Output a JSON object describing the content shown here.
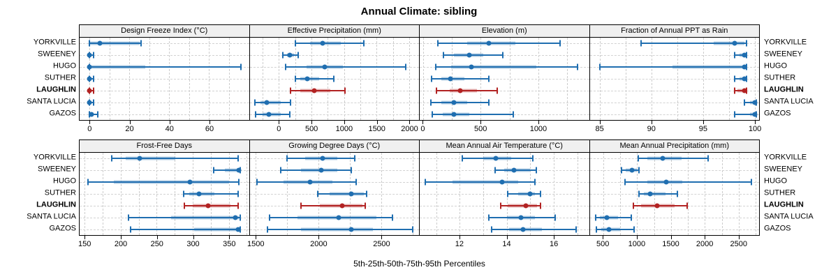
{
  "chart_data": {
    "type": "percentile-range-trellis",
    "title": "Annual Climate: sibling",
    "footer": "5th-25th-50th-75th-95th Percentiles",
    "percentile_labels": [
      "5th",
      "25th",
      "50th",
      "75th",
      "95th"
    ],
    "sites": [
      "YORKVILLE",
      "SWEENEY",
      "HUGO",
      "SUTHER",
      "LAUGHLIN",
      "SANTA LUCIA",
      "GAZOS"
    ],
    "highlight_site": "LAUGHLIN",
    "colors": {
      "normal": "#1f6eb0",
      "highlight": "#b22222",
      "band_opacity": 0.35,
      "grid": "#cccccc",
      "header_bg": "#f0f0f0",
      "border": "#000000"
    },
    "legend_position": "none",
    "grid": "dashed",
    "panels": [
      {
        "title": "Design Freeze Index (°C)",
        "xlim": [
          -5,
          80
        ],
        "ticks": [
          0,
          20,
          40,
          60
        ],
        "grid_step": 10,
        "values": {
          "YORKVILLE": [
            0,
            0,
            5,
            25,
            26
          ],
          "SWEENEY": [
            0,
            0,
            0,
            1,
            2
          ],
          "HUGO": [
            0,
            0,
            0,
            28,
            76
          ],
          "SUTHER": [
            0,
            0,
            0,
            1,
            2
          ],
          "LAUGHLIN": [
            0,
            0,
            0,
            1,
            2
          ],
          "SANTA LUCIA": [
            0,
            0,
            0,
            1,
            2
          ],
          "GAZOS": [
            0,
            0,
            1,
            2,
            4
          ]
        }
      },
      {
        "title": "Effective Precipitation (mm)",
        "xlim": [
          -450,
          2150
        ],
        "ticks": [
          0,
          500,
          1000,
          1500,
          2000
        ],
        "grid_step": 250,
        "values": {
          "YORKVILLE": [
            250,
            480,
            670,
            950,
            1300
          ],
          "SWEENEY": [
            60,
            120,
            170,
            230,
            290
          ],
          "HUGO": [
            100,
            420,
            700,
            980,
            1950
          ],
          "SUTHER": [
            250,
            330,
            430,
            620,
            840
          ],
          "LAUGHLIN": [
            180,
            330,
            545,
            790,
            1010
          ],
          "SANTA LUCIA": [
            -370,
            -280,
            -185,
            30,
            180
          ],
          "GAZOS": [
            -360,
            -250,
            -160,
            30,
            170
          ]
        }
      },
      {
        "title": "Elevation (m)",
        "xlim": [
          -30,
          1440
        ],
        "ticks": [
          0,
          500,
          1000
        ],
        "grid_step": 250,
        "values": {
          "YORKVILLE": [
            130,
            380,
            570,
            800,
            1190
          ],
          "SWEENEY": [
            175,
            270,
            400,
            520,
            690
          ],
          "HUGO": [
            110,
            240,
            420,
            980,
            1340
          ],
          "SUTHER": [
            75,
            160,
            235,
            360,
            570
          ],
          "LAUGHLIN": [
            115,
            230,
            320,
            470,
            640
          ],
          "SANTA LUCIA": [
            70,
            160,
            270,
            380,
            570
          ],
          "GAZOS": [
            80,
            170,
            270,
            400,
            780
          ]
        }
      },
      {
        "title": "Fraction of Annual PPT as Rain",
        "xlim": [
          84,
          100.4
        ],
        "ticks": [
          85,
          90,
          95,
          100
        ],
        "grid_step": 2.5,
        "values": {
          "YORKVILLE": [
            89,
            96,
            98,
            99,
            99.2
          ],
          "SWEENEY": [
            98,
            98.5,
            99,
            99,
            99.2
          ],
          "HUGO": [
            85,
            92,
            99,
            99,
            99.2
          ],
          "SUTHER": [
            98,
            98.5,
            99,
            99,
            99.2
          ],
          "LAUGHLIN": [
            98,
            98.3,
            99,
            99,
            99.2
          ],
          "SANTA LUCIA": [
            99,
            99.5,
            100,
            100,
            100.1
          ],
          "GAZOS": [
            98,
            99.5,
            100,
            100,
            100.1
          ]
        }
      },
      {
        "title": "Frost-Free Days",
        "xlim": [
          143,
          378
        ],
        "ticks": [
          150,
          200,
          250,
          300,
          350
        ],
        "grid_step": 25,
        "values": {
          "YORKVILLE": [
            188,
            207,
            226,
            276,
            363
          ],
          "SWEENEY": [
            329,
            345,
            364,
            365,
            366
          ],
          "HUGO": [
            155,
            190,
            296,
            350,
            364
          ],
          "SUTHER": [
            287,
            295,
            309,
            330,
            363
          ],
          "LAUGHLIN": [
            288,
            300,
            321,
            352,
            363
          ],
          "SANTA LUCIA": [
            211,
            270,
            359,
            364,
            366
          ],
          "GAZOS": [
            214,
            302,
            363,
            365,
            366
          ]
        }
      },
      {
        "title": "Growing Degree Days (°C)",
        "xlim": [
          1450,
          2800
        ],
        "ticks": [
          1500,
          2000,
          2500
        ],
        "grid_step": 250,
        "values": {
          "YORKVILLE": [
            1750,
            1890,
            2030,
            2150,
            2290
          ],
          "SWEENEY": [
            1700,
            1860,
            2020,
            2150,
            2260
          ],
          "HUGO": [
            1510,
            1720,
            1930,
            2110,
            2300
          ],
          "SUTHER": [
            1990,
            2090,
            2260,
            2360,
            2380
          ],
          "LAUGHLIN": [
            1860,
            2010,
            2190,
            2350,
            2370
          ],
          "SANTA LUCIA": [
            1610,
            1830,
            2160,
            2460,
            2590
          ],
          "GAZOS": [
            1590,
            1860,
            2260,
            2430,
            2750
          ]
        }
      },
      {
        "title": "Mean Annual Air Temperature (°C)",
        "xlim": [
          10.3,
          17.5
        ],
        "ticks": [
          12,
          14,
          16
        ],
        "grid_step": 1,
        "values": {
          "YORKVILLE": [
            12.1,
            13.0,
            13.55,
            14.2,
            15.1
          ],
          "SWEENEY": [
            13.5,
            13.9,
            14.3,
            15.0,
            15.25
          ],
          "HUGO": [
            10.55,
            11.7,
            13.8,
            14.5,
            15.2
          ],
          "SUTHER": [
            14.05,
            14.5,
            15.0,
            15.2,
            15.45
          ],
          "LAUGHLIN": [
            13.75,
            14.05,
            14.8,
            15.3,
            15.45
          ],
          "SANTA LUCIA": [
            13.25,
            14.0,
            14.6,
            15.2,
            16.05
          ],
          "GAZOS": [
            13.35,
            14.1,
            14.7,
            15.5,
            16.95
          ]
        }
      },
      {
        "title": "Mean Annual Precipitation (mm)",
        "xlim": [
          300,
          2800
        ],
        "ticks": [
          500,
          1000,
          1500,
          2000,
          2500
        ],
        "grid_step": 250,
        "values": {
          "YORKVILLE": [
            1020,
            1150,
            1380,
            1660,
            2050
          ],
          "SWEENEY": [
            770,
            830,
            920,
            1000,
            1030
          ],
          "HUGO": [
            820,
            1150,
            1430,
            1670,
            2690
          ],
          "SUTHER": [
            1030,
            1100,
            1190,
            1420,
            1590
          ],
          "LAUGHLIN": [
            940,
            1060,
            1290,
            1550,
            1740
          ],
          "SANTA LUCIA": [
            390,
            450,
            550,
            720,
            910
          ],
          "GAZOS": [
            400,
            470,
            580,
            750,
            950
          ]
        }
      }
    ]
  }
}
